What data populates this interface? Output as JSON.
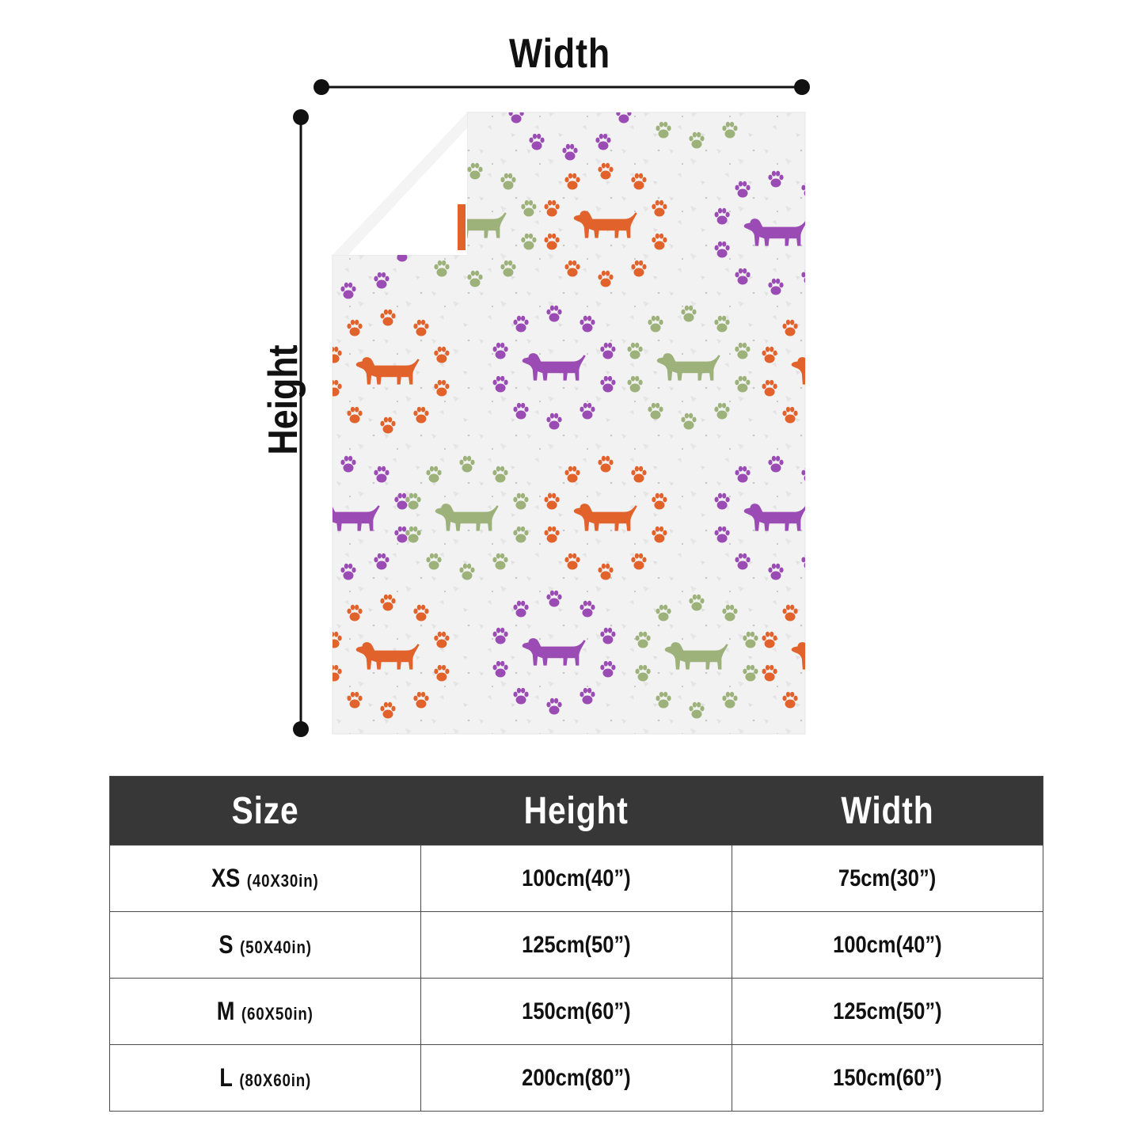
{
  "diagram": {
    "width_label": "Width",
    "height_label": "Height",
    "colors": {
      "orange": "#e2622c",
      "purple": "#9b4bb4",
      "green": "#9db17a",
      "fabric": "#f2f2f2",
      "fold": "#ffffff"
    },
    "icons": [
      "paw-print-icon",
      "dachshund-icon"
    ]
  },
  "table": {
    "headers": {
      "size": "Size",
      "height": "Height",
      "width": "Width"
    },
    "rows": [
      {
        "size": "XS",
        "inches": "(40X30in)",
        "height": "100cm(40”)",
        "width": "75cm(30”)"
      },
      {
        "size": "S",
        "inches": "(50X40in)",
        "height": "125cm(50”)",
        "width": "100cm(40”)"
      },
      {
        "size": "M",
        "inches": "(60X50in)",
        "height": "150cm(60”)",
        "width": "125cm(50”)"
      },
      {
        "size": "L",
        "inches": "(80X60in)",
        "height": "200cm(80”)",
        "width": "150cm(60”)"
      }
    ],
    "colors": {
      "header_bg": "#373737",
      "header_text": "#ffffff",
      "border": "#4a4a4a"
    }
  }
}
